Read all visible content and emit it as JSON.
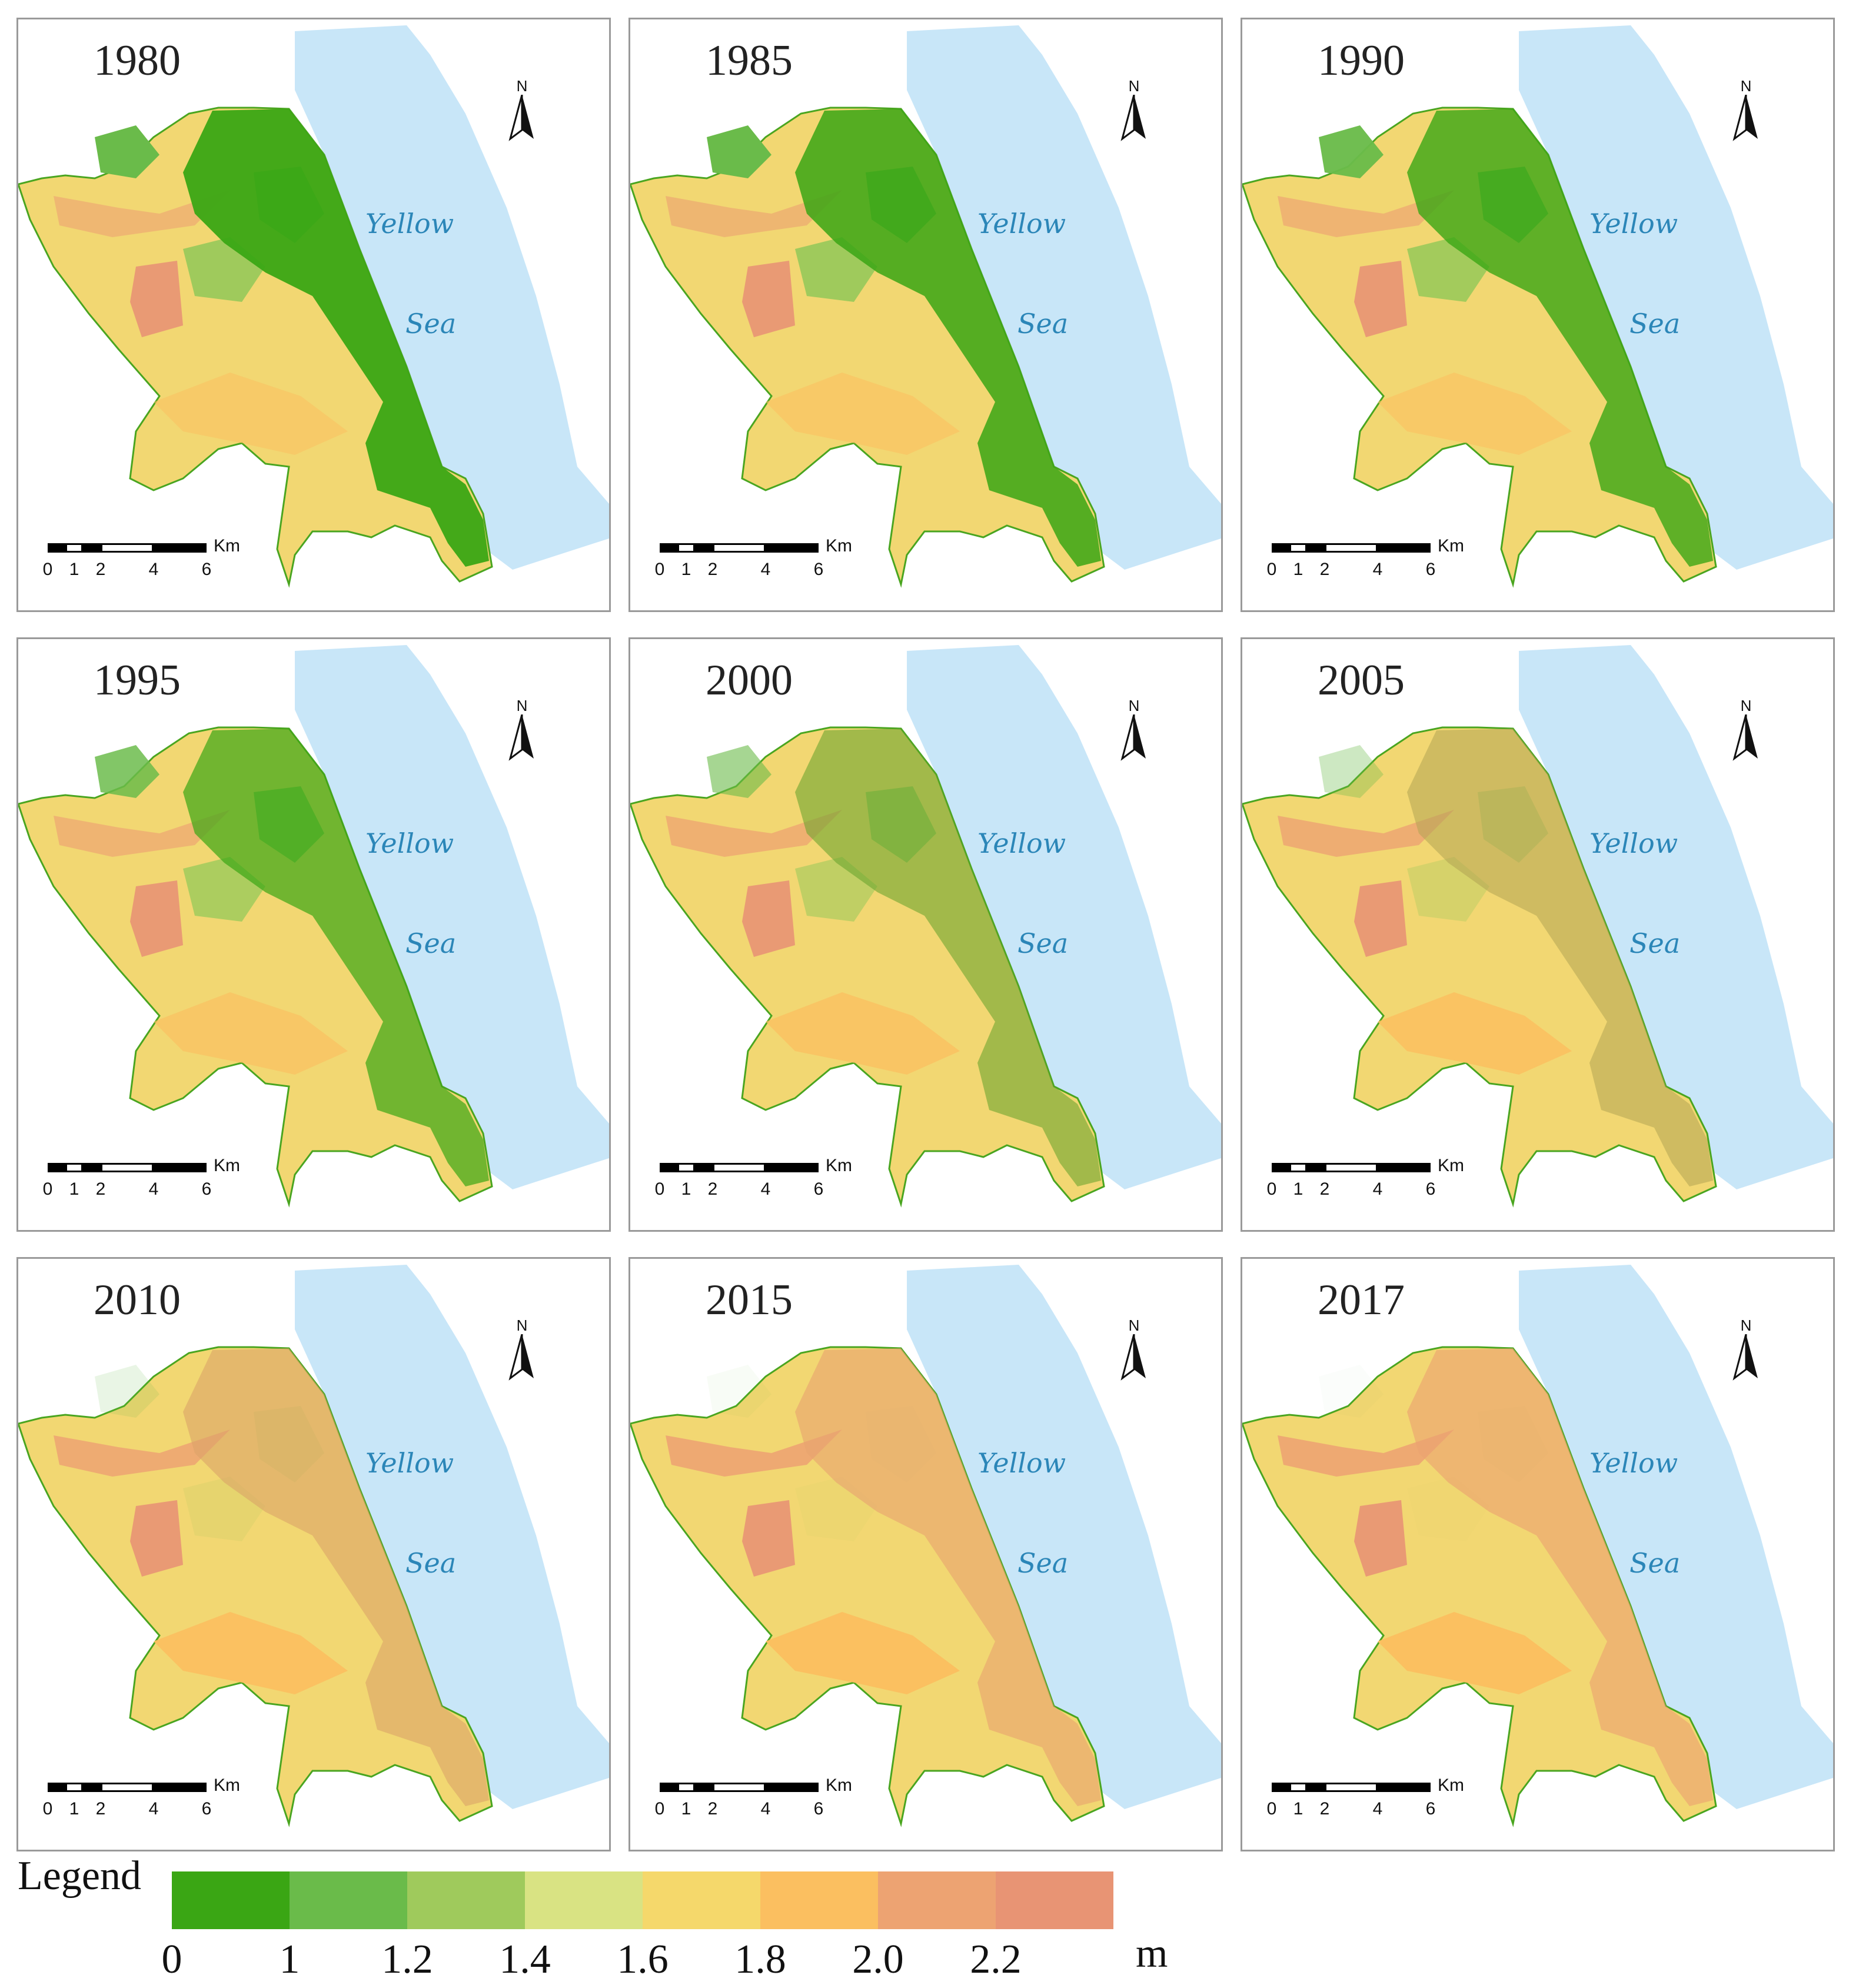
{
  "panels": [
    {
      "year": "1980",
      "green": 0.95
    },
    {
      "year": "1985",
      "green": 0.85
    },
    {
      "year": "1990",
      "green": 0.8
    },
    {
      "year": "1995",
      "green": 0.7
    },
    {
      "year": "2000",
      "green": 0.5
    },
    {
      "year": "2005",
      "green": 0.28
    },
    {
      "year": "2010",
      "green": 0.12
    },
    {
      "year": "2015",
      "green": 0.04
    },
    {
      "year": "2017",
      "green": 0.02
    }
  ],
  "map_labels": {
    "sea_line1": "Yellow",
    "sea_line2": "Sea",
    "north": "N"
  },
  "scale_bar": {
    "unit": "Km",
    "ticks": [
      "0",
      "1",
      "2",
      "4",
      "6"
    ]
  },
  "legend": {
    "title": "Legend",
    "unit": "m",
    "colors": [
      "#3aa614",
      "#6abb4a",
      "#9fca5c",
      "#d9e383",
      "#f5d86b",
      "#fbbf60",
      "#eda372",
      "#e89474"
    ],
    "labels": [
      "0",
      "1",
      "1.2",
      "1.4",
      "1.6",
      "1.8",
      "2.0",
      "2.2"
    ]
  }
}
